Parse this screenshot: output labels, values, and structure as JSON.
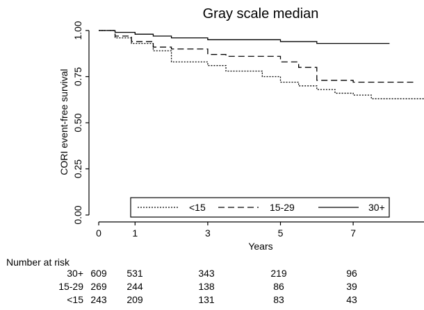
{
  "chart_data": {
    "type": "line",
    "title": "Gray scale median",
    "xlabel": "Years",
    "ylabel": "CORI event-free survival",
    "xlim": [
      0,
      9.1
    ],
    "ylim": [
      0,
      1
    ],
    "x_ticks": [
      0,
      1,
      3,
      5,
      7
    ],
    "y_ticks": [
      0.0,
      0.25,
      0.5,
      0.75,
      1.0
    ],
    "y_tick_labels": [
      "0.00",
      "0.25",
      "0.50",
      "0.75",
      "1.00"
    ],
    "grid": false,
    "legend_position": "bottom, inside plot",
    "series": [
      {
        "name": "<15",
        "dash": "dotted",
        "x": [
          0,
          0.45,
          0.9,
          1.5,
          2.0,
          3.0,
          3.5,
          4.5,
          5.0,
          5.5,
          6.0,
          6.5,
          7.0,
          7.5,
          9.1
        ],
        "y": [
          1.0,
          0.96,
          0.93,
          0.89,
          0.83,
          0.81,
          0.78,
          0.75,
          0.72,
          0.7,
          0.68,
          0.66,
          0.65,
          0.63,
          0.63
        ]
      },
      {
        "name": "15-29",
        "dash": "dashed",
        "x": [
          0,
          0.45,
          0.9,
          1.5,
          2.0,
          3.0,
          3.5,
          5.0,
          5.5,
          6.0,
          7.0,
          8.7
        ],
        "y": [
          1.0,
          0.97,
          0.94,
          0.91,
          0.9,
          0.87,
          0.86,
          0.83,
          0.8,
          0.73,
          0.72,
          0.72
        ]
      },
      {
        "name": "30+",
        "dash": "solid",
        "x": [
          0,
          0.45,
          1.0,
          1.5,
          2.0,
          3.0,
          4.0,
          5.0,
          6.0,
          8.0
        ],
        "y": [
          1.0,
          0.99,
          0.98,
          0.97,
          0.96,
          0.95,
          0.95,
          0.94,
          0.93,
          0.93
        ]
      }
    ]
  },
  "risk_table": {
    "title": "Number at risk",
    "x": [
      0,
      1,
      3,
      5,
      7
    ],
    "rows": [
      {
        "label": "30+",
        "values": [
          "609",
          "531",
          "343",
          "219",
          "96"
        ]
      },
      {
        "label": "15-29",
        "values": [
          "269",
          "244",
          "138",
          "86",
          "39"
        ]
      },
      {
        "label": "<15",
        "values": [
          "243",
          "209",
          "131",
          "83",
          "43"
        ]
      }
    ]
  }
}
